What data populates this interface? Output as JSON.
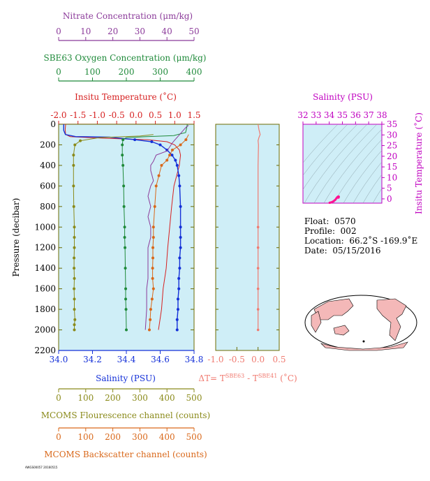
{
  "colors": {
    "plot_bg": "#cfeef7",
    "nitrate": "#8b3a9a",
    "oxygen": "#1f8a3a",
    "temperature": "#d62020",
    "salinity": "#1430d8",
    "delta_t": "#f07a70",
    "ts_axis": "#c000c0",
    "fluorescence": "#8a8a1a",
    "backscatter": "#d9681a"
  },
  "axes": {
    "nitrate": {
      "title": "Nitrate Concentration (μm/kg)",
      "ticks": [
        "0",
        "10",
        "20",
        "30",
        "40",
        "50"
      ]
    },
    "oxygen": {
      "title": "SBE63 Oxygen Concentration (μm/kg)",
      "ticks": [
        "0",
        "100",
        "200",
        "300",
        "400"
      ]
    },
    "temperature": {
      "title": "Insitu Temperature (˚C)",
      "ticks": [
        "-2.0",
        "-1.5",
        "-1.0",
        "-0.5",
        "0.0",
        "0.5",
        "1.0",
        "1.5"
      ]
    },
    "pressure": {
      "title": "Pressure (decibar)",
      "ticks": [
        "0",
        "200",
        "400",
        "600",
        "800",
        "1000",
        "1200",
        "1400",
        "1600",
        "1800",
        "2000",
        "2200"
      ]
    },
    "salinity": {
      "title": "Salinity (PSU)",
      "ticks": [
        "34.0",
        "34.2",
        "34.4",
        "34.6",
        "34.8"
      ]
    },
    "delta_t": {
      "title_prefix": "ΔT= T",
      "sup1": "SBE63",
      "mid": " - T",
      "sup2": "SBE41",
      "suffix": " (˚C)",
      "ticks": [
        "-1.0",
        "-0.5",
        "0.0",
        "0.5"
      ]
    },
    "fluorescence": {
      "title": "MCOMS Flourescence channel (counts)",
      "ticks": [
        "0",
        "100",
        "200",
        "300",
        "400",
        "500"
      ]
    },
    "backscatter": {
      "title": "MCOMS Backscatter channel (counts)",
      "ticks": [
        "0",
        "100",
        "200",
        "300",
        "400",
        "500"
      ]
    },
    "ts_salinity": {
      "title": "Salinity (PSU)",
      "ticks": [
        "32",
        "33",
        "34",
        "35",
        "36",
        "37",
        "38"
      ]
    },
    "ts_temperature": {
      "title": "Insitu Temperature (˚C)",
      "ticks": [
        "35",
        "30",
        "25",
        "20",
        "15",
        "10",
        "5",
        "0"
      ]
    }
  },
  "info": {
    "float_label": "Float:",
    "float_value": "0570",
    "profile_label": "Profile:",
    "profile_value": "002",
    "location_label": "Location:",
    "location_value": "66.2˚S  -169.9˚E",
    "date_label": "Date:",
    "date_value": "05/15/2016"
  },
  "footer": "AWGS00057 20160515",
  "chart_data": [
    {
      "type": "line",
      "ylabel": "Pressure (decibar)",
      "ylim": [
        2200,
        0
      ],
      "series": [
        {
          "name": "Insitu Temperature",
          "axis": "temperature",
          "xlim": [
            -2.0,
            1.5
          ],
          "x": [
            -1.82,
            -1.83,
            -1.82,
            -1.7,
            -1.2,
            -0.5,
            0.3,
            0.8,
            1.0,
            1.12,
            1.15,
            1.12,
            1.05,
            0.98,
            0.92,
            0.87,
            0.82,
            0.78,
            0.74,
            0.7,
            0.66,
            0.62,
            0.58
          ],
          "y": [
            0,
            50,
            100,
            120,
            130,
            140,
            150,
            170,
            200,
            250,
            300,
            400,
            500,
            600,
            800,
            1000,
            1200,
            1400,
            1500,
            1600,
            1800,
            1900,
            2000
          ]
        },
        {
          "name": "Salinity",
          "axis": "salinity",
          "xlim": [
            34.0,
            34.8
          ],
          "x": [
            34.03,
            34.03,
            34.04,
            34.1,
            34.3,
            34.45,
            34.55,
            34.6,
            34.64,
            34.67,
            34.69,
            34.7,
            34.71,
            34.715,
            34.72,
            34.72,
            34.72,
            34.72,
            34.715,
            34.715,
            34.71,
            34.71,
            34.705,
            34.705,
            34.7,
            34.7
          ],
          "y": [
            0,
            60,
            100,
            120,
            125,
            150,
            170,
            200,
            250,
            300,
            350,
            400,
            500,
            600,
            800,
            1000,
            1100,
            1200,
            1300,
            1400,
            1500,
            1600,
            1700,
            1800,
            1900,
            2000
          ]
        },
        {
          "name": "SBE63 Oxygen Concentration",
          "axis": "oxygen",
          "xlim": [
            0,
            400
          ],
          "x": [
            380,
            378,
            375,
            340,
            260,
            200,
            190,
            188,
            188,
            190,
            192,
            193,
            195,
            195,
            196,
            197,
            198,
            198,
            199,
            200
          ],
          "y": [
            0,
            40,
            80,
            110,
            120,
            130,
            150,
            200,
            300,
            400,
            600,
            800,
            1000,
            1100,
            1200,
            1400,
            1600,
            1700,
            1800,
            2000
          ]
        },
        {
          "name": "Nitrate Concentration",
          "axis": "nitrate",
          "xlim": [
            0,
            50
          ],
          "x": [
            48,
            47,
            46,
            45,
            44,
            43,
            42,
            41,
            40,
            36,
            35,
            34,
            34,
            34.5,
            35,
            34,
            33,
            34,
            33,
            34,
            34,
            33,
            33,
            33,
            33,
            32.5,
            32.5,
            32.5,
            32
          ],
          "y": [
            10,
            30,
            60,
            90,
            120,
            150,
            180,
            220,
            260,
            300,
            360,
            400,
            450,
            500,
            550,
            600,
            700,
            800,
            900,
            1000,
            1100,
            1200,
            1300,
            1400,
            1500,
            1600,
            1700,
            1800,
            2000
          ]
        },
        {
          "name": "MCOMS Flourescence channel",
          "axis": "fluorescence",
          "xlim": [
            0,
            500
          ],
          "x": [
            350,
            300,
            150,
            80,
            60,
            55,
            55,
            55,
            56,
            58,
            58,
            58,
            57,
            57,
            58,
            57,
            58,
            58,
            60,
            58,
            58
          ],
          "y": [
            100,
            115,
            130,
            160,
            200,
            300,
            400,
            600,
            800,
            1000,
            1100,
            1200,
            1300,
            1400,
            1500,
            1600,
            1700,
            1800,
            1900,
            1950,
            2000
          ]
        },
        {
          "name": "MCOMS Backscatter channel",
          "axis": "backscatter",
          "xlim": [
            0,
            500
          ],
          "x": [
            480,
            470,
            450,
            420,
            410,
            400,
            380,
            370,
            360,
            355,
            350,
            350,
            348,
            348,
            347,
            347,
            350,
            345,
            340,
            338,
            335
          ],
          "y": [
            100,
            150,
            200,
            250,
            300,
            350,
            400,
            500,
            600,
            800,
            1000,
            1100,
            1200,
            1300,
            1400,
            1500,
            1600,
            1700,
            1800,
            1900,
            2000
          ]
        }
      ]
    },
    {
      "type": "line",
      "xlabel": "ΔT= T SBE63 - T SBE41 (˚C)",
      "xlim": [
        -1.0,
        0.5
      ],
      "ylim": [
        2200,
        0
      ],
      "series": [
        {
          "name": "ΔT",
          "x": [
            0.0,
            0.02,
            0.05,
            0.02,
            0.0,
            0.01,
            0.0,
            0.0,
            0.0,
            0.0,
            0.0,
            0.0,
            0.0,
            0.0,
            0.0
          ],
          "y": [
            0,
            50,
            100,
            130,
            160,
            200,
            400,
            600,
            800,
            1000,
            1200,
            1400,
            1600,
            1800,
            2000
          ]
        }
      ]
    },
    {
      "type": "scatter",
      "xlabel": "Salinity (PSU)",
      "ylabel": "Insitu Temperature (˚C)",
      "xlim": [
        32,
        38
      ],
      "ylim": [
        -2,
        35
      ],
      "series": [
        {
          "name": "T-S",
          "x": [
            34.03,
            34.1,
            34.3,
            34.45,
            34.55,
            34.62,
            34.67,
            34.7,
            34.72,
            34.72,
            34.71,
            34.7
          ],
          "y": [
            -1.82,
            -1.7,
            -1.2,
            -0.5,
            0.3,
            0.8,
            1.05,
            1.12,
            1.05,
            0.9,
            0.75,
            0.58
          ]
        }
      ]
    }
  ]
}
